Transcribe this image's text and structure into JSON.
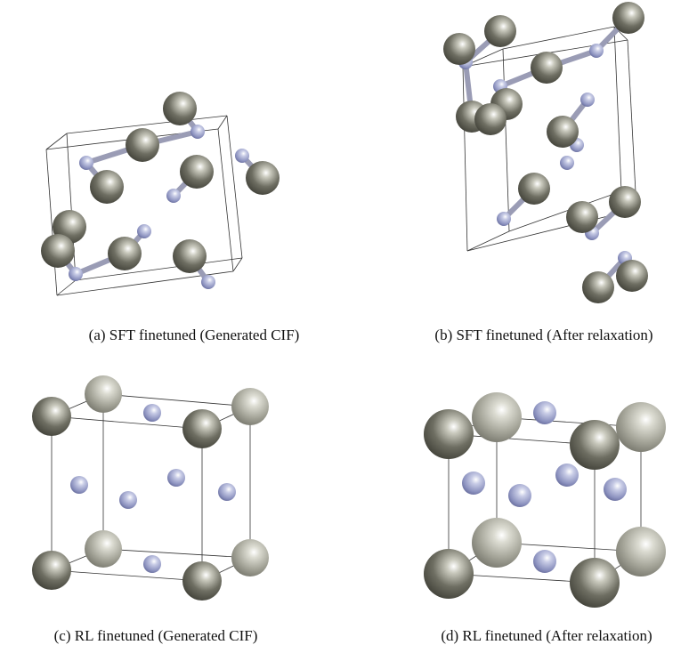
{
  "panels": [
    {
      "caption": "(a) SFT finetuned (Generated CIF)"
    },
    {
      "caption": "(b) SFT finetuned (After relaxation)"
    },
    {
      "caption": "(c) RL finetuned (Generated CIF)"
    },
    {
      "caption": "(d) RL finetuned (After relaxation)"
    }
  ]
}
